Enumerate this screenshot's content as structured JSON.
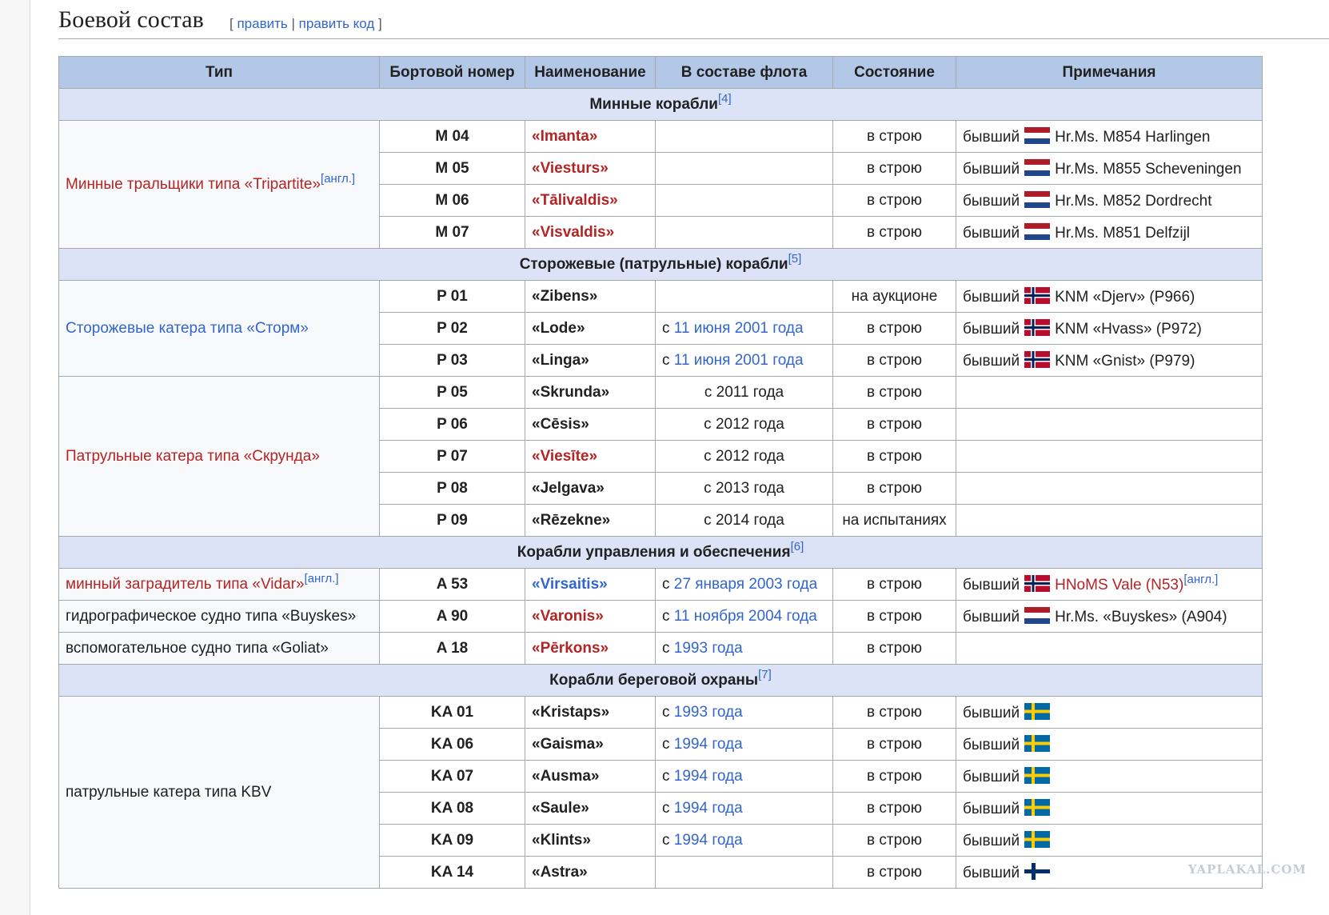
{
  "header": {
    "title": "Боевой состав",
    "edit_open": "[",
    "edit_link": "править",
    "edit_sep": "|",
    "edit_code_link": "править код",
    "edit_close": "]"
  },
  "table": {
    "columns": [
      "Тип",
      "Бортовой номер",
      "Наименование",
      "В составе флота",
      "Состояние",
      "Примечания"
    ],
    "sections": [
      {
        "title": "Минные корабли",
        "ref": "[4]",
        "groups": [
          {
            "type": "Минные тральщики типа «Tripartite»",
            "type_sup": "[англ.]",
            "type_style": "red",
            "rows": [
              {
                "number": "M 04",
                "name": "«Imanta»",
                "name_style": "red",
                "service": null,
                "status": "в строю",
                "note": {
                  "prefix": "бывший",
                  "flag": "nl",
                  "text": "Hr.Ms. M854 Harlingen"
                }
              },
              {
                "number": "M 05",
                "name": "«Viesturs»",
                "name_style": "red",
                "service": null,
                "status": "в строю",
                "note": {
                  "prefix": "бывший",
                  "flag": "nl",
                  "text": "Hr.Ms. M855 Scheveningen"
                }
              },
              {
                "number": "M 06",
                "name": "«Tālivaldis»",
                "name_style": "red",
                "service": null,
                "status": "в строю",
                "note": {
                  "prefix": "бывший",
                  "flag": "nl",
                  "text": "Hr.Ms. M852 Dordrecht"
                }
              },
              {
                "number": "M 07",
                "name": "«Visvaldis»",
                "name_style": "red",
                "service": null,
                "status": "в строю",
                "note": {
                  "prefix": "бывший",
                  "flag": "nl",
                  "text": "Hr.Ms. M851 Delfzijl"
                }
              }
            ]
          }
        ]
      },
      {
        "title": "Сторожевые (патрульные) корабли",
        "ref": "[5]",
        "groups": [
          {
            "type": "Сторожевые катера типа «Сторм»",
            "type_style": "blue",
            "rows": [
              {
                "number": "P 01",
                "name": "«Zibens»",
                "name_style": "black",
                "service": null,
                "status": "на аукционе",
                "note": {
                  "prefix": "бывший",
                  "flag": "no",
                  "text": "KNM «Djerv» (P966)"
                }
              },
              {
                "number": "P 02",
                "name": "«Lode»",
                "name_style": "black",
                "service": {
                  "prefix": "с",
                  "link": "11 июня 2001 года"
                },
                "status": "в строю",
                "note": {
                  "prefix": "бывший",
                  "flag": "no",
                  "text": "KNM «Hvass» (P972)"
                }
              },
              {
                "number": "P 03",
                "name": "«Linga»",
                "name_style": "black",
                "service": {
                  "prefix": "с",
                  "link": "11 июня 2001 года"
                },
                "status": "в строю",
                "note": {
                  "prefix": "бывший",
                  "flag": "no",
                  "text": "KNM «Gnist» (P979)"
                }
              }
            ]
          },
          {
            "type": "Патрульные катера типа «Скрунда»",
            "type_style": "red",
            "rows": [
              {
                "number": "P 05",
                "name": "«Skrunda»",
                "name_style": "black",
                "service": "с 2011 года",
                "status": "в строю",
                "note": null
              },
              {
                "number": "P 06",
                "name": "«Cēsis»",
                "name_style": "black",
                "service": "с 2012 года",
                "status": "в строю",
                "note": null
              },
              {
                "number": "P 07",
                "name": "«Viesīte»",
                "name_style": "red",
                "service": "с 2012 года",
                "status": "в строю",
                "note": null
              },
              {
                "number": "P 08",
                "name": "«Jelgava»",
                "name_style": "black",
                "service": "с 2013 года",
                "status": "в строю",
                "note": null
              },
              {
                "number": "P 09",
                "name": "«Rēzekne»",
                "name_style": "black",
                "service": "с 2014 года",
                "status": "на испытаниях",
                "note": null
              }
            ]
          }
        ]
      },
      {
        "title": "Корабли управления и обеспечения",
        "ref": "[6]",
        "groups": [
          {
            "type": "минный заградитель типа «Vidar»",
            "type_sup": "[англ.]",
            "type_style": "red",
            "rows": [
              {
                "number": "A 53",
                "name": "«Virsaitis»",
                "name_style": "blue",
                "service": {
                  "prefix": "с",
                  "link": "27 января 2003 года"
                },
                "status": "в строю",
                "note": {
                  "prefix": "бывший",
                  "flag": "no",
                  "text": "HNoMS Vale (N53)",
                  "text_style": "red",
                  "sup": "[англ.]"
                }
              }
            ]
          },
          {
            "type": "гидрографическое судно типа «Buyskes»",
            "type_style": "black",
            "rows": [
              {
                "number": "A 90",
                "name": "«Varonis»",
                "name_style": "red",
                "service": {
                  "prefix": "с",
                  "link": "11 ноября 2004 года"
                },
                "status": "в строю",
                "note": {
                  "prefix": "бывший",
                  "flag": "nl",
                  "text": "Hr.Ms. «Buyskes» (A904)"
                }
              }
            ]
          },
          {
            "type": "вспомогательное судно типа «Goliat»",
            "type_style": "black",
            "rows": [
              {
                "number": "A 18",
                "name": "«Pērkons»",
                "name_style": "red",
                "service": {
                  "prefix": "с",
                  "link": "1993 года"
                },
                "status": "в строю",
                "note": null
              }
            ]
          }
        ]
      },
      {
        "title": "Корабли береговой охраны",
        "ref": "[7]",
        "groups": [
          {
            "type": "патрульные катера типа KBV",
            "type_style": "black",
            "rows": [
              {
                "number": "KA 01",
                "name": "«Kristaps»",
                "name_style": "black",
                "service": {
                  "prefix": "с",
                  "link": "1993 года"
                },
                "status": "в строю",
                "note": {
                  "prefix": "бывший",
                  "flag": "se"
                }
              },
              {
                "number": "KA 06",
                "name": "«Gaisma»",
                "name_style": "black",
                "service": {
                  "prefix": "с",
                  "link": "1994 года"
                },
                "status": "в строю",
                "note": {
                  "prefix": "бывший",
                  "flag": "se"
                }
              },
              {
                "number": "KA 07",
                "name": "«Ausma»",
                "name_style": "black",
                "service": {
                  "prefix": "с",
                  "link": "1994 года"
                },
                "status": "в строю",
                "note": {
                  "prefix": "бывший",
                  "flag": "se"
                }
              },
              {
                "number": "KA 08",
                "name": "«Saule»",
                "name_style": "black",
                "service": {
                  "prefix": "с",
                  "link": "1994 года"
                },
                "status": "в строю",
                "note": {
                  "prefix": "бывший",
                  "flag": "se"
                }
              },
              {
                "number": "KA 09",
                "name": "«Klints»",
                "name_style": "black",
                "service": {
                  "prefix": "с",
                  "link": "1994 года"
                },
                "status": "в строю",
                "note": {
                  "prefix": "бывший",
                  "flag": "se"
                }
              },
              {
                "number": "KA 14",
                "name": "«Astra»",
                "name_style": "black",
                "service": null,
                "status": "в строю",
                "note": {
                  "prefix": "бывший",
                  "flag": "fi"
                }
              }
            ]
          }
        ]
      }
    ]
  },
  "watermark": "YAPLAKAL.COM"
}
